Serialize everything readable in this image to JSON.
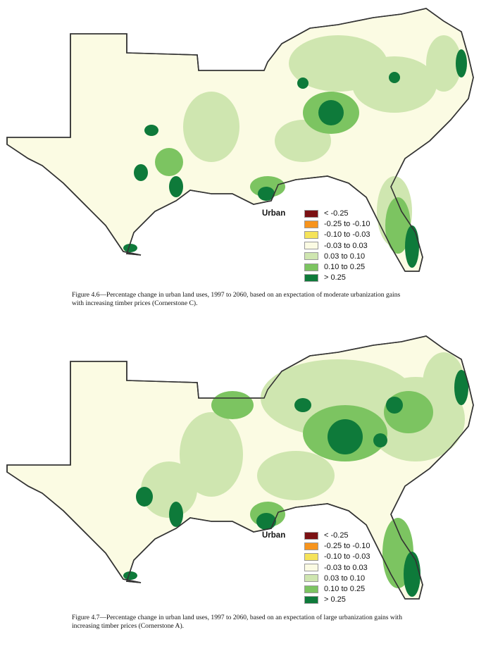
{
  "figures": [
    {
      "caption": "Figure 4.6—Percentage change in urban land uses, 1997 to 2060, based on an expectation of moderate urbanization gains with increasing timber prices (Cornerstone C).",
      "legend_title": "Urban"
    },
    {
      "caption": "Figure 4.7—Percentage change in urban land uses, 1997 to 2060, based on an expectation of large urbanization gains with increasing timber prices (Cornerstone A).",
      "legend_title": "Urban"
    }
  ],
  "legend": [
    {
      "label": "< -0.25",
      "color": "#7b1113"
    },
    {
      "label": "-0.25 to -0.10",
      "color": "#f7941d"
    },
    {
      "label": "-0.10 to -0.03",
      "color": "#f5e35a"
    },
    {
      "label": "-0.03 to 0.03",
      "color": "#fbfbe3"
    },
    {
      "label": "0.03 to 0.10",
      "color": "#cfe6b0"
    },
    {
      "label": "0.10 to 0.25",
      "color": "#7cc461"
    },
    {
      "label": "> 0.25",
      "color": "#0e7a3a"
    }
  ]
}
